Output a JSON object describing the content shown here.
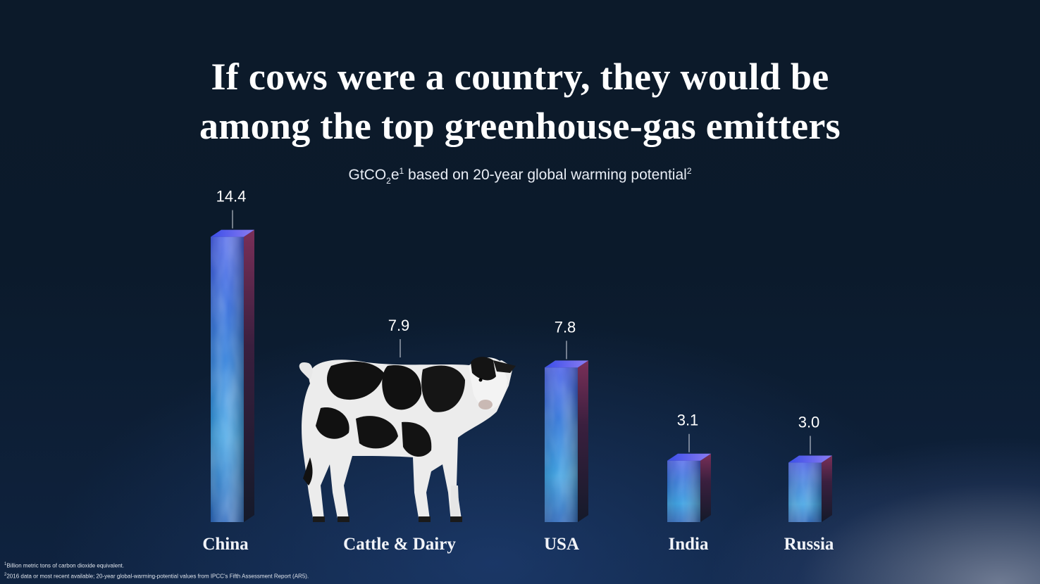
{
  "title": {
    "line1": "If cows were a country, they would be",
    "line2": "among the top greenhouse-gas emitters"
  },
  "subtitle": {
    "unit_prefix": "GtCO",
    "unit_sub": "2",
    "unit_suffix": "e",
    "note_ref1": "1",
    "text": " based on 20-year global warming potential",
    "note_ref2": "2"
  },
  "footnotes": {
    "note1_mark": "1",
    "note1": "Billion metric tons of carbon dioxide equivalent.",
    "note2_mark": "2",
    "note2": "2016 data or most recent available; 20-year global-warming-potential values from IPCC's Fifth Assessment Report (AR5)."
  },
  "colors": {
    "bar_front_top": "#3f5fe8",
    "bar_front_bottom": "#2a8ad8",
    "bar_side": "#5a2a4a",
    "bar_top": "#6f6cf0"
  },
  "chart_data": {
    "type": "bar",
    "categories": [
      "China",
      "Cattle & Dairy",
      "USA",
      "India",
      "Russia"
    ],
    "values": [
      14.4,
      7.9,
      7.8,
      3.1,
      3.0
    ],
    "value_labels": [
      "14.4",
      "7.9",
      "7.8",
      "3.1",
      "3.0"
    ],
    "title": "If cows were a country, they would be among the top greenhouse-gas emitters",
    "ylabel": "GtCO2e based on 20-year global warming potential",
    "xlabel": "",
    "ylim": [
      0,
      14.4
    ],
    "grid": false,
    "legend": "none",
    "special_marks": {
      "Cattle & Dairy": "cow-image"
    }
  }
}
